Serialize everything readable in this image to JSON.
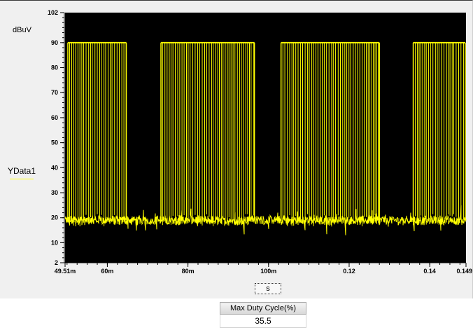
{
  "chart_data": {
    "type": "line",
    "title": "",
    "xlabel": "s",
    "ylabel": "dBuV",
    "ylim": [
      2,
      102
    ],
    "xlim": [
      0.04951,
      0.149
    ],
    "y_ticks": [
      {
        "value": 2,
        "label": "2"
      },
      {
        "value": 10,
        "label": "10"
      },
      {
        "value": 20,
        "label": "20"
      },
      {
        "value": 30,
        "label": "30"
      },
      {
        "value": 40,
        "label": "40"
      },
      {
        "value": 50,
        "label": "50"
      },
      {
        "value": 60,
        "label": "60"
      },
      {
        "value": 70,
        "label": "70"
      },
      {
        "value": 80,
        "label": "80"
      },
      {
        "value": 90,
        "label": "90"
      },
      {
        "value": 102,
        "label": "102"
      }
    ],
    "x_ticks": [
      {
        "value": 0.04951,
        "label": "49.51m"
      },
      {
        "value": 0.06,
        "label": "60m"
      },
      {
        "value": 0.08,
        "label": "80m"
      },
      {
        "value": 0.1,
        "label": "100m"
      },
      {
        "value": 0.12,
        "label": "0.12"
      },
      {
        "value": 0.14,
        "label": "0.14"
      },
      {
        "value": 0.149,
        "label": "0.149"
      }
    ],
    "grid": false,
    "background": "#000000",
    "series": [
      {
        "name": "YData1",
        "color": "#ffff00",
        "baseline_level": 19,
        "high_level": 90,
        "bursts": [
          {
            "start": 0.0502,
            "end": 0.0647
          },
          {
            "start": 0.0733,
            "end": 0.0965
          },
          {
            "start": 0.1031,
            "end": 0.1275
          },
          {
            "start": 0.1359,
            "end": 0.149
          }
        ]
      }
    ]
  },
  "ui": {
    "y_unit_label": "dBuV",
    "legend_label": "YData1",
    "x_unit_button": "s",
    "measurement_header": "Max Duty Cycle(%)",
    "measurement_value": "35.5"
  }
}
